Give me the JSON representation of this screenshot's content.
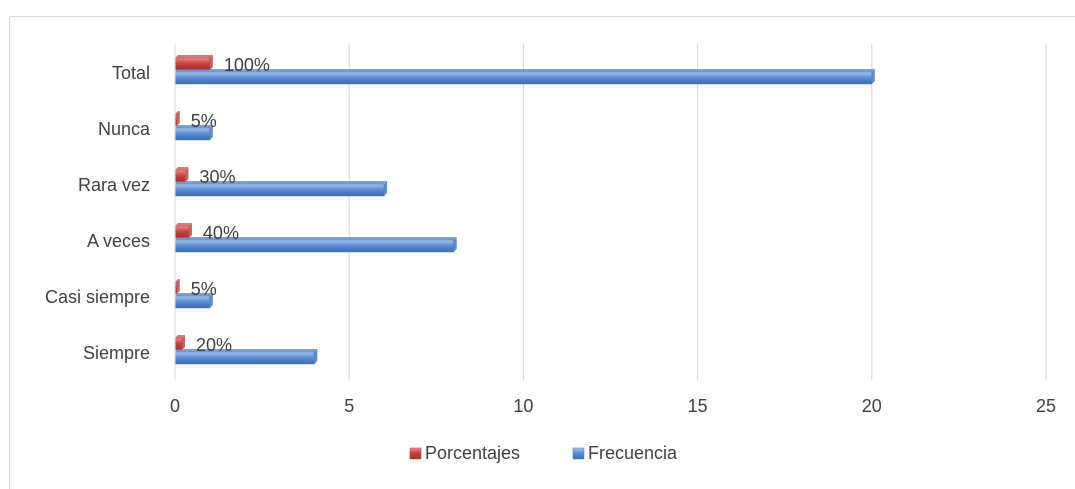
{
  "chart_data": {
    "type": "bar",
    "orientation": "horizontal",
    "categories": [
      "Siempre",
      "Casi siempre",
      "A veces",
      "Rara vez",
      "Nunca",
      "Total"
    ],
    "series": [
      {
        "name": "Porcentajes",
        "values": [
          0.2,
          0.05,
          0.4,
          0.3,
          0.05,
          1.0
        ],
        "labels": [
          "20%",
          "5%",
          "40%",
          "30%",
          "5%",
          "100%"
        ],
        "color": "#c0504d"
      },
      {
        "name": "Frecuencia",
        "values": [
          4,
          1,
          8,
          6,
          1,
          20
        ],
        "color": "#4f81bd"
      }
    ],
    "xlim": [
      0,
      25
    ],
    "xticks": [
      "0",
      "5",
      "10",
      "15",
      "20",
      "25"
    ],
    "grid": true,
    "legend_position": "bottom"
  }
}
